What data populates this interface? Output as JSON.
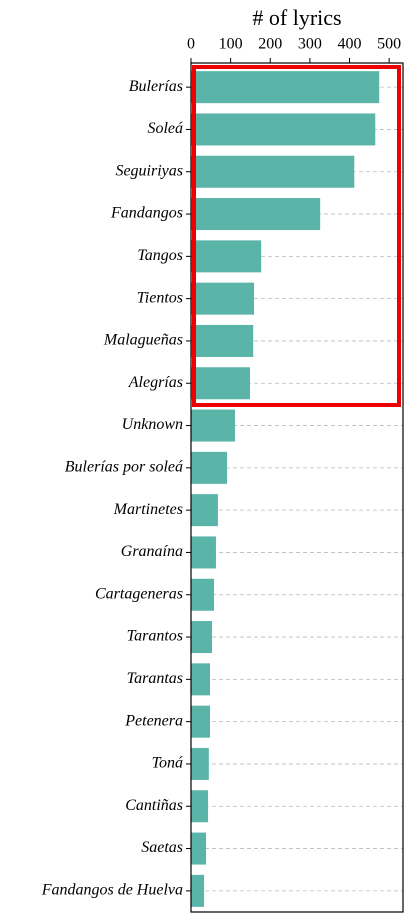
{
  "chart_data": {
    "type": "bar",
    "orientation": "horizontal",
    "xlabel": "# of lyrics",
    "categories": [
      "Bulerías",
      "Soleá",
      "Seguiriyas",
      "Fandangos",
      "Tangos",
      "Tientos",
      "Malagueñas",
      "Alegrías",
      "Unknown",
      "Bulerías por soleá",
      "Martinetes",
      "Granaína",
      "Cartageneras",
      "Tarantos",
      "Tarantas",
      "Petenera",
      "Toná",
      "Cantiñas",
      "Saetas",
      "Fandangos de Huelva"
    ],
    "values": [
      475,
      465,
      412,
      326,
      177,
      159,
      157,
      149,
      111,
      91,
      68,
      63,
      58,
      53,
      48,
      48,
      45,
      43,
      38,
      33
    ],
    "color": "#5ab4a8",
    "xlim": [
      0,
      535
    ],
    "xticks": [
      0,
      100,
      200,
      300,
      400,
      500
    ],
    "grid": true
  }
}
